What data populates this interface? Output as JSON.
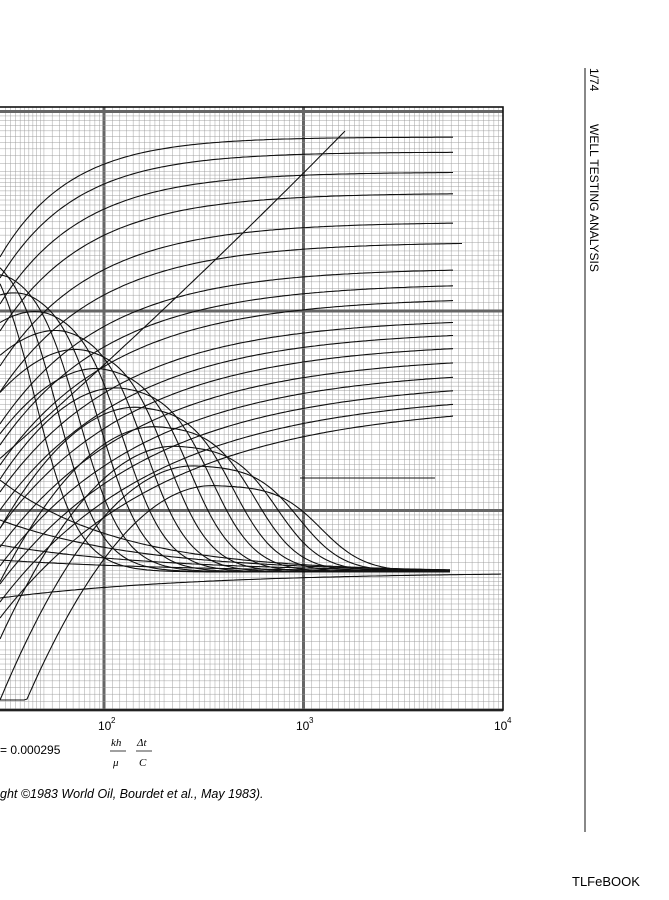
{
  "header": {
    "page": "1/74",
    "title": "WELL TESTING ANALYSIS"
  },
  "figure": {
    "x_tick_labels": [
      {
        "base": "10",
        "exp": "2"
      },
      {
        "base": "10",
        "exp": "3"
      },
      {
        "base": "10",
        "exp": "4"
      }
    ],
    "formula": {
      "lead": "= 0.000295",
      "num1": "kh",
      "den1": "μ",
      "num2": "Δt",
      "den2": "C"
    },
    "caption": "ght ©1983 World Oil, Bourdet et al., May 1983)."
  },
  "footer": "TLFeBOOK"
}
